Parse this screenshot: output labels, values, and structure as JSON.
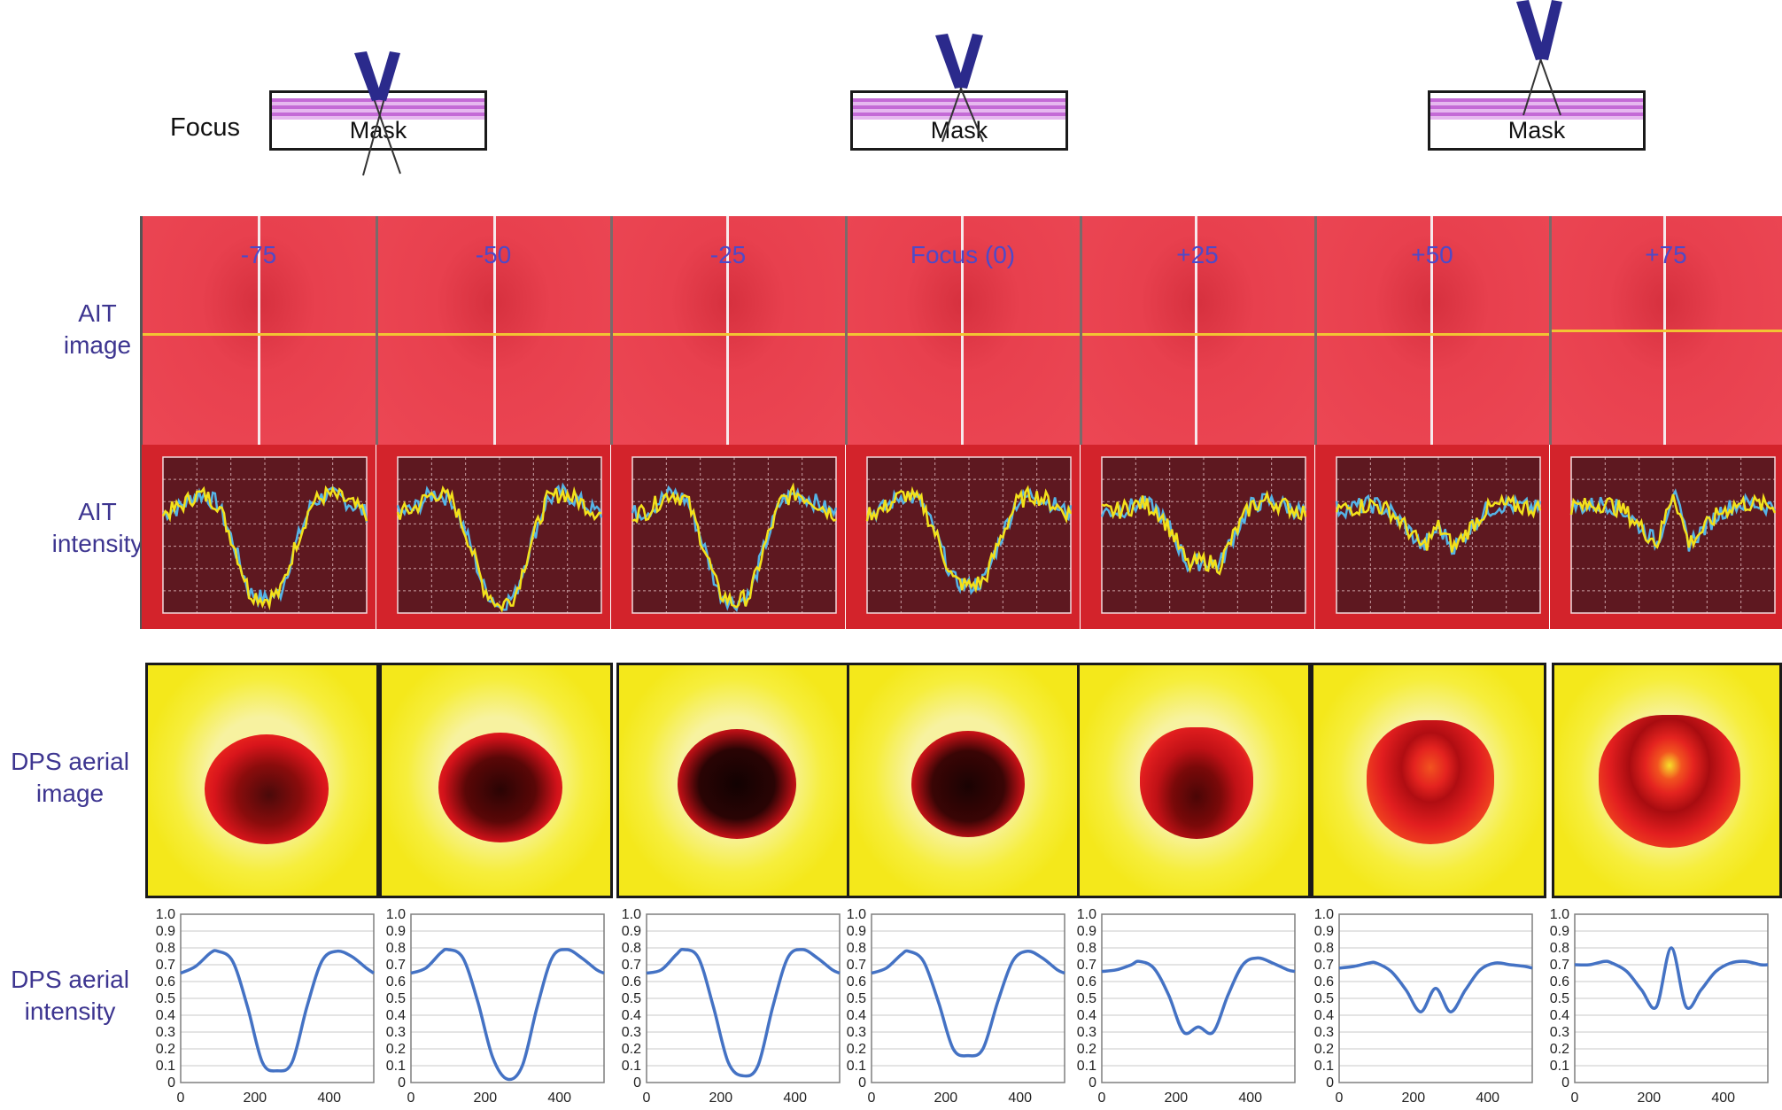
{
  "row_labels": {
    "ait_image": [
      "AIT",
      "image"
    ],
    "ait_intensity": [
      "AIT",
      "intensity"
    ],
    "dps_image": [
      "DPS aerial",
      "image"
    ],
    "dps_intensity": [
      "DPS aerial",
      "intensity"
    ]
  },
  "focus_diagram": {
    "label": "Focus",
    "mask_label": "Mask",
    "cone_color": "#2b2a8c",
    "stripe_color": "#c46ad6"
  },
  "panels": [
    {
      "focus_label": "-75"
    },
    {
      "focus_label": "-50"
    },
    {
      "focus_label": "-25"
    },
    {
      "focus_label": "Focus (0)"
    },
    {
      "focus_label": "+25"
    },
    {
      "focus_label": "+50"
    },
    {
      "focus_label": "+75"
    }
  ],
  "colors": {
    "ait_background": "#ec4754",
    "ait_plot_background": "#5e1820",
    "ait_trace_a": "#f3e11b",
    "ait_trace_b": "#55b3e6",
    "dps_background": "#f5ec1b",
    "dps_curve": "#4472c4",
    "row_label": "#3d3590"
  },
  "chart_data": {
    "type": "line",
    "title": "",
    "xlabel": "",
    "ylabel": "",
    "x_ticks": [
      0,
      200,
      400
    ],
    "y_ticks": [
      0,
      0.1,
      0.2,
      0.3,
      0.4,
      0.5,
      0.6,
      0.7,
      0.8,
      0.9,
      1.0
    ],
    "y_tick_labels": [
      "0",
      "0.1",
      "0.2",
      "0.3",
      "0.4",
      "0.5",
      "0.6",
      "0.7",
      "0.8",
      "0.9",
      "1.0"
    ],
    "xlim": [
      0,
      520
    ],
    "ylim": [
      0,
      1.0
    ],
    "grid": true,
    "x": [
      0,
      40,
      80,
      100,
      140,
      180,
      220,
      260,
      300,
      340,
      380,
      420,
      460,
      500,
      520
    ],
    "series": [
      {
        "values": [
          0.65,
          0.69,
          0.77,
          0.78,
          0.72,
          0.45,
          0.12,
          0.07,
          0.12,
          0.45,
          0.72,
          0.78,
          0.75,
          0.68,
          0.65
        ]
      },
      {
        "values": [
          0.65,
          0.68,
          0.77,
          0.79,
          0.74,
          0.48,
          0.15,
          0.02,
          0.1,
          0.45,
          0.74,
          0.79,
          0.74,
          0.67,
          0.65
        ]
      },
      {
        "values": [
          0.65,
          0.67,
          0.76,
          0.79,
          0.74,
          0.45,
          0.12,
          0.04,
          0.1,
          0.45,
          0.74,
          0.79,
          0.74,
          0.67,
          0.65
        ]
      },
      {
        "values": [
          0.65,
          0.68,
          0.76,
          0.78,
          0.72,
          0.48,
          0.2,
          0.16,
          0.2,
          0.48,
          0.72,
          0.78,
          0.74,
          0.67,
          0.65
        ]
      },
      {
        "values": [
          0.66,
          0.67,
          0.7,
          0.72,
          0.68,
          0.52,
          0.3,
          0.33,
          0.3,
          0.52,
          0.7,
          0.74,
          0.71,
          0.67,
          0.66
        ]
      },
      {
        "values": [
          0.68,
          0.69,
          0.71,
          0.71,
          0.66,
          0.55,
          0.42,
          0.56,
          0.42,
          0.55,
          0.67,
          0.71,
          0.7,
          0.69,
          0.68
        ]
      },
      {
        "values": [
          0.7,
          0.7,
          0.72,
          0.71,
          0.66,
          0.55,
          0.45,
          0.8,
          0.45,
          0.55,
          0.66,
          0.71,
          0.72,
          0.7,
          0.7
        ]
      }
    ]
  }
}
